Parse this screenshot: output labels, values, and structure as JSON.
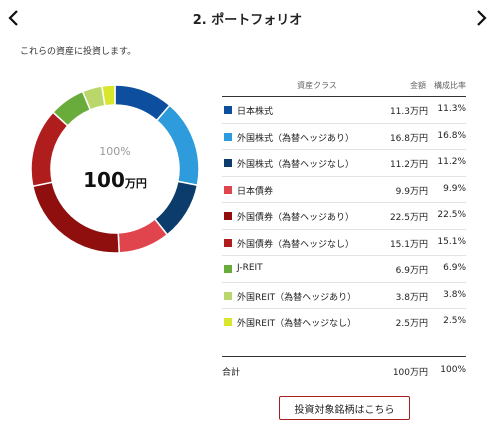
{
  "header": {
    "title": "2. ポートフォリオ",
    "prev_icon": "chevron-left-icon",
    "next_icon": "chevron-right-icon"
  },
  "subtitle": "これらの資産に投資します。",
  "donut_center": {
    "percent": "100%",
    "amount": "100",
    "unit": "万円"
  },
  "table": {
    "headers": {
      "class": "資産クラス",
      "amount": "金額",
      "ratio": "構成比率"
    },
    "rows": [
      {
        "name": "日本株式",
        "amount": "11.3万円",
        "ratio": "11.3%",
        "value": 11.3,
        "color": "#0d4f9e"
      },
      {
        "name": "外国株式（為替ヘッジあり）",
        "amount": "16.8万円",
        "ratio": "16.8%",
        "value": 16.8,
        "color": "#2e9bdc"
      },
      {
        "name": "外国株式（為替ヘッジなし）",
        "amount": "11.2万円",
        "ratio": "11.2%",
        "value": 11.2,
        "color": "#0b3c6b"
      },
      {
        "name": "日本債券",
        "amount": "9.9万円",
        "ratio": "9.9%",
        "value": 9.9,
        "color": "#e0454e"
      },
      {
        "name": "外国債券（為替ヘッジあり）",
        "amount": "22.5万円",
        "ratio": "22.5%",
        "value": 22.5,
        "color": "#8f0e0e"
      },
      {
        "name": "外国債券（為替ヘッジなし）",
        "amount": "15.1万円",
        "ratio": "15.1%",
        "value": 15.1,
        "color": "#b01d1d"
      },
      {
        "name": "J-REIT",
        "amount": "6.9万円",
        "ratio": "6.9%",
        "value": 6.9,
        "color": "#6aac3c"
      },
      {
        "name": "外国REIT（為替ヘッジあり）",
        "amount": "3.8万円",
        "ratio": "3.8%",
        "value": 3.8,
        "color": "#b9d76a"
      },
      {
        "name": "外国REIT（為替ヘッジなし）",
        "amount": "2.5万円",
        "ratio": "2.5%",
        "value": 2.5,
        "color": "#d8e62e"
      }
    ],
    "total": {
      "name": "合計",
      "amount": "100万円",
      "ratio": "100%"
    }
  },
  "button": {
    "label": "投資対象銘柄はこちら"
  }
}
